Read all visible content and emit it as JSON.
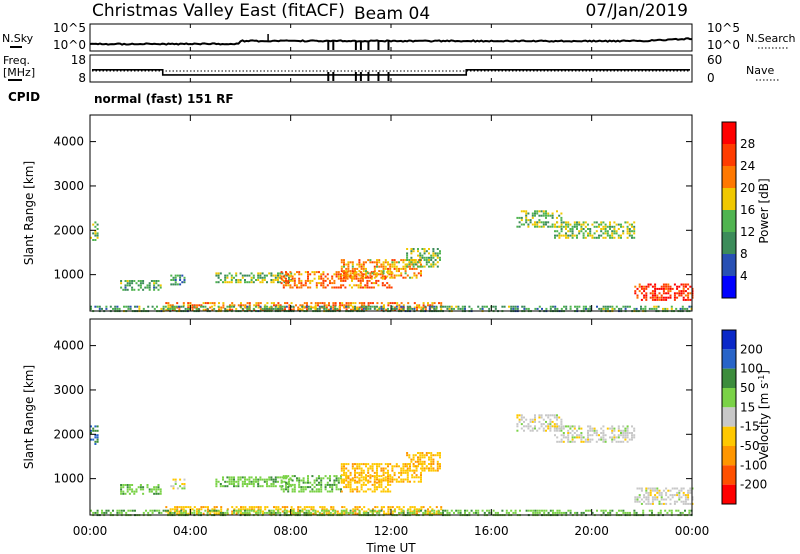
{
  "header": {
    "title": "Christmas Valley East (fitACF)",
    "beam": "Beam 04",
    "date": "07/Jan/2019"
  },
  "panels": {
    "nsky": {
      "label": "N.Sky",
      "ticks": [
        "10^5",
        "10^0"
      ]
    },
    "nsearch": {
      "label": "N.Search",
      "ticks": [
        "10^5",
        "10^0"
      ]
    },
    "freq": {
      "label_top": "Freq.",
      "label_bottom": "[MHz]",
      "ticks": [
        "18",
        "8"
      ]
    },
    "nave": {
      "label": "Nave",
      "ticks": [
        "60",
        "0"
      ]
    },
    "cpid": {
      "label": "CPID",
      "value": "normal (fast) 151 RF"
    }
  },
  "colors": {
    "power": [
      "#0000ff",
      "#2850b4",
      "#3c8c5a",
      "#50b450",
      "#f0c800",
      "#ff7800",
      "#ff3c00",
      "#ff0000"
    ],
    "velocity": [
      "#ff0000",
      "#ff5000",
      "#ff9600",
      "#ffc800",
      "#c8c8c8",
      "#7ad247",
      "#3c8c3c",
      "#2864c8",
      "#0a28c8"
    ]
  },
  "chart_data": [
    {
      "type": "heatmap",
      "name": "power",
      "xlabel": "",
      "ylabel": "Slant Range [km]",
      "yticks": [
        "1000",
        "2000",
        "3000",
        "4000"
      ],
      "ylim": [
        180,
        4600
      ],
      "xlim_hours": [
        0,
        24
      ],
      "colorbar": {
        "label": "Power [dB]",
        "ticks": [
          "4",
          "8",
          "12",
          "16",
          "20",
          "24",
          "28"
        ],
        "range": [
          0,
          32
        ]
      },
      "regions": [
        {
          "t": [
            0.0,
            0.3
          ],
          "r": [
            1800,
            2200
          ],
          "level": 14
        },
        {
          "t": [
            1.2,
            2.8
          ],
          "r": [
            680,
            880
          ],
          "level": 12
        },
        {
          "t": [
            3.2,
            3.8
          ],
          "r": [
            780,
            1000
          ],
          "level": 11
        },
        {
          "t": [
            5.0,
            8.0
          ],
          "r": [
            850,
            1050
          ],
          "level": 14
        },
        {
          "t": [
            7.6,
            12.0
          ],
          "r": [
            700,
            1080
          ],
          "level": 23
        },
        {
          "t": [
            10.0,
            13.2
          ],
          "r": [
            950,
            1350
          ],
          "level": 20
        },
        {
          "t": [
            12.6,
            14.0
          ],
          "r": [
            1200,
            1600
          ],
          "level": 14
        },
        {
          "t": [
            17.0,
            18.8
          ],
          "r": [
            2100,
            2450
          ],
          "level": 14
        },
        {
          "t": [
            18.5,
            21.7
          ],
          "r": [
            1850,
            2200
          ],
          "level": 15
        },
        {
          "t": [
            21.7,
            24.0
          ],
          "r": [
            450,
            800
          ],
          "level": 27
        },
        {
          "t": [
            3.0,
            14.0
          ],
          "r": [
            200,
            380
          ],
          "level": 22
        },
        {
          "t": [
            0.0,
            24.0
          ],
          "r": [
            200,
            300
          ],
          "level": 12
        }
      ]
    },
    {
      "type": "heatmap",
      "name": "velocity",
      "xlabel": "Time UT",
      "ylabel": "Slant Range [km]",
      "xticks": [
        "00:00",
        "04:00",
        "08:00",
        "12:00",
        "16:00",
        "20:00",
        "00:00"
      ],
      "yticks": [
        "1000",
        "2000",
        "3000",
        "4000"
      ],
      "ylim": [
        180,
        4600
      ],
      "xlim_hours": [
        0,
        24
      ],
      "colorbar": {
        "label": "Velocity [m s^-1]",
        "ticks": [
          "200",
          "100",
          "50",
          "15",
          "-15",
          "-50",
          "-100",
          "-200"
        ]
      },
      "regions": [
        {
          "t": [
            0.0,
            0.3
          ],
          "r": [
            1800,
            2200
          ],
          "level": 100
        },
        {
          "t": [
            1.2,
            2.8
          ],
          "r": [
            680,
            880
          ],
          "level": 40
        },
        {
          "t": [
            3.2,
            3.8
          ],
          "r": [
            780,
            1000
          ],
          "level": 0
        },
        {
          "t": [
            5.0,
            8.0
          ],
          "r": [
            850,
            1050
          ],
          "level": 40
        },
        {
          "t": [
            7.6,
            10.0
          ],
          "r": [
            700,
            1080
          ],
          "level": 40
        },
        {
          "t": [
            10.0,
            12.0
          ],
          "r": [
            700,
            1080
          ],
          "level": -40
        },
        {
          "t": [
            10.0,
            13.2
          ],
          "r": [
            950,
            1350
          ],
          "level": -40
        },
        {
          "t": [
            12.6,
            14.0
          ],
          "r": [
            1200,
            1600
          ],
          "level": -40
        },
        {
          "t": [
            17.0,
            18.8
          ],
          "r": [
            2100,
            2450
          ],
          "level": 0
        },
        {
          "t": [
            18.5,
            21.7
          ],
          "r": [
            1850,
            2200
          ],
          "level": 0
        },
        {
          "t": [
            21.7,
            24.0
          ],
          "r": [
            450,
            800
          ],
          "level": 0
        },
        {
          "t": [
            3.0,
            14.0
          ],
          "r": [
            200,
            380
          ],
          "level": -40
        },
        {
          "t": [
            0.0,
            24.0
          ],
          "r": [
            200,
            300
          ],
          "level": 40
        }
      ]
    }
  ]
}
